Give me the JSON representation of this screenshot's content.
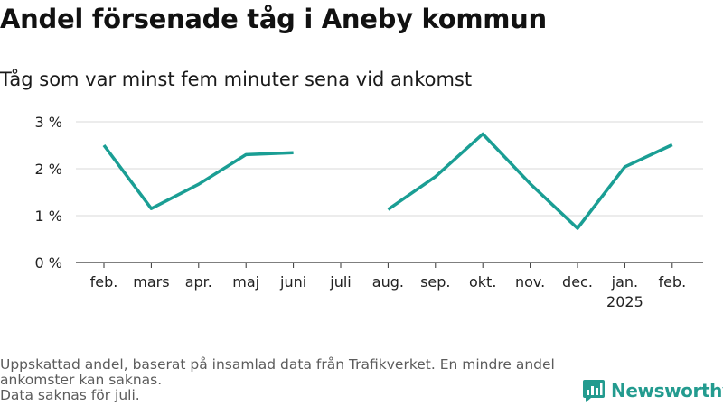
{
  "header": {
    "title": "Andel försenade tåg i Aneby kommun",
    "subtitle": "Tåg som var minst fem minuter sena vid ankomst"
  },
  "footer": {
    "note_line1": "Uppskattad andel, baserat på insamlad data från Trafikverket. En mindre andel ankomster kan saknas.",
    "note_line2": "Data saknas för juli."
  },
  "brand": {
    "name": "Newsworthy",
    "color": "#239b8f"
  },
  "chart_data": {
    "type": "line",
    "categories": [
      "feb.",
      "mars",
      "apr.",
      "maj",
      "juni",
      "juli",
      "aug.",
      "sep.",
      "okt.",
      "nov.",
      "dec.",
      "jan.",
      "feb."
    ],
    "category_sublabels": [
      "",
      "",
      "",
      "",
      "",
      "",
      "",
      "",
      "",
      "",
      "",
      "2025",
      ""
    ],
    "series": [
      {
        "values": [
          2.5,
          1.15,
          1.67,
          2.3,
          2.34,
          null,
          1.13,
          1.83,
          2.74,
          1.68,
          0.73,
          2.04,
          2.51
        ],
        "color": "#1a9e94"
      }
    ],
    "ylim": [
      0,
      3
    ],
    "yticks": [
      0,
      1,
      2,
      3
    ],
    "ytick_labels": [
      "0 %",
      "1 %",
      "2 %",
      "3 %"
    ],
    "grid": true,
    "legend": "none"
  }
}
